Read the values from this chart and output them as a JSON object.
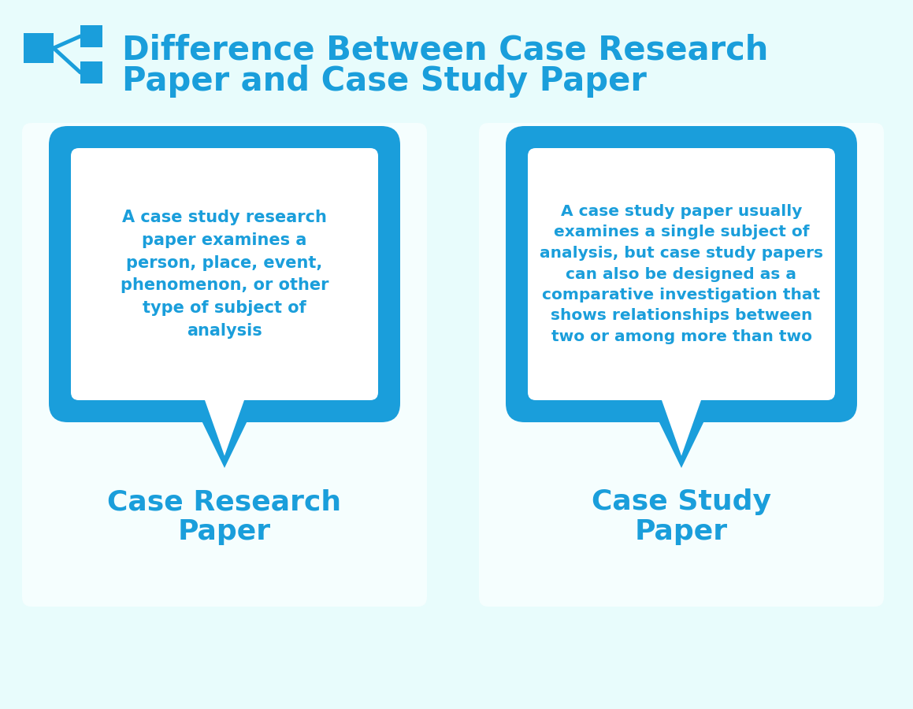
{
  "bg_color": "#e8fcfc",
  "blue_color": "#1a9edb",
  "white_color": "#ffffff",
  "title_line1": "Difference Between Case Research",
  "title_line2": "Paper and Case Study Paper",
  "title_fontsize": 30,
  "left_label_line1": "Case Research",
  "left_label_line2": "Paper",
  "right_label_line1": "Case Study",
  "right_label_line2": "Paper",
  "left_text": "A case study research\npaper examines a\nperson, place, event,\nphenomenon, or other\ntype of subject of\nanalysis",
  "right_text": "A case study paper usually\nexamines a single subject of\nanalysis, but case study papers\ncan also be designed as a\ncomparative investigation that\nshows relationships between\ntwo or among more than two",
  "bubble_text_fontsize": 15,
  "label_fontsize": 26,
  "card_color": "#f5fefe"
}
